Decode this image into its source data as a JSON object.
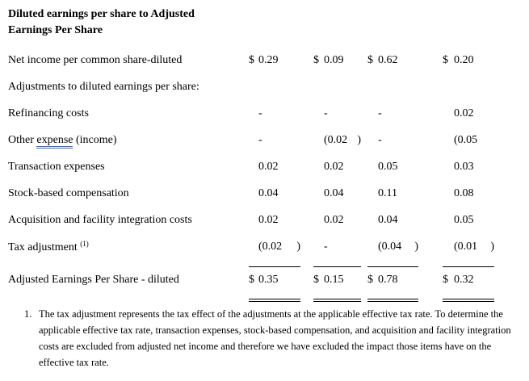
{
  "page": {
    "title": "Diluted earnings per share to Adjusted Earnings Per Share"
  },
  "table": {
    "rows": [
      {
        "type": "data",
        "label": {
          "text": "Net income per common share-diluted"
        },
        "cells": [
          [
            "$",
            "0.29",
            ""
          ],
          [
            "$",
            "0.09",
            ""
          ],
          [
            "$",
            "0.62",
            ""
          ],
          [
            "$",
            "0.20",
            ""
          ]
        ]
      },
      {
        "type": "section",
        "label": {
          "text": "Adjustments to diluted earnings per share:"
        },
        "cells": [
          [
            "",
            "",
            ""
          ],
          [
            "",
            "",
            ""
          ],
          [
            "",
            "",
            ""
          ],
          [
            "",
            "",
            ""
          ]
        ]
      },
      {
        "type": "data",
        "label": {
          "text": "Refinancing costs"
        },
        "cells": [
          [
            "",
            "-",
            ""
          ],
          [
            "",
            "-",
            ""
          ],
          [
            "",
            "-",
            ""
          ],
          [
            "",
            "0.02",
            ""
          ]
        ]
      },
      {
        "type": "data",
        "label": {
          "pre": "Other ",
          "underline": "expense",
          "post": " (income)"
        },
        "cells": [
          [
            "",
            "-",
            ""
          ],
          [
            "",
            "(0.02",
            ")"
          ],
          [
            "",
            "-",
            ""
          ],
          [
            "",
            "(0.05",
            ""
          ]
        ]
      },
      {
        "type": "data",
        "label": {
          "text": "Transaction expenses"
        },
        "cells": [
          [
            "",
            "0.02",
            ""
          ],
          [
            "",
            "0.02",
            ""
          ],
          [
            "",
            "0.05",
            ""
          ],
          [
            "",
            "0.03",
            ""
          ]
        ]
      },
      {
        "type": "data",
        "label": {
          "text": "Stock-based compensation"
        },
        "cells": [
          [
            "",
            "0.04",
            ""
          ],
          [
            "",
            "0.04",
            ""
          ],
          [
            "",
            "0.11",
            ""
          ],
          [
            "",
            "0.08",
            ""
          ]
        ]
      },
      {
        "type": "data",
        "label": {
          "text": "Acquisition and facility integration costs"
        },
        "cells": [
          [
            "",
            "0.02",
            ""
          ],
          [
            "",
            "0.02",
            ""
          ],
          [
            "",
            "0.04",
            ""
          ],
          [
            "",
            "0.05",
            ""
          ]
        ]
      },
      {
        "type": "data",
        "label": {
          "text": "Tax adjustment ",
          "sup": "(1)"
        },
        "cells": [
          [
            "",
            "(0.02",
            ")"
          ],
          [
            "",
            "-",
            ""
          ],
          [
            "",
            "(0.04",
            ")"
          ],
          [
            "",
            "(0.01",
            ")"
          ]
        ]
      },
      {
        "type": "total",
        "label": {
          "text": "Adjusted Earnings Per Share - diluted"
        },
        "cells": [
          [
            "$",
            "0.35",
            ""
          ],
          [
            "$",
            "0.15",
            ""
          ],
          [
            "$",
            "0.78",
            ""
          ],
          [
            "$",
            "0.32",
            ""
          ]
        ]
      }
    ]
  },
  "footnote": {
    "marker": "1.",
    "text": "The tax adjustment represents the tax effect of the adjustments at the applicable effective tax rate. To determine the applicable effective tax rate, transaction expenses, stock-based compensation, and acquisition and facility integration costs are excluded from adjusted net income and therefore we have excluded the impact those items have on the effective tax rate."
  },
  "colors": {
    "text": "#000000",
    "rule": "#000000",
    "grammar_underline_blue": "#3f6cd1",
    "background": "#ffffff"
  }
}
